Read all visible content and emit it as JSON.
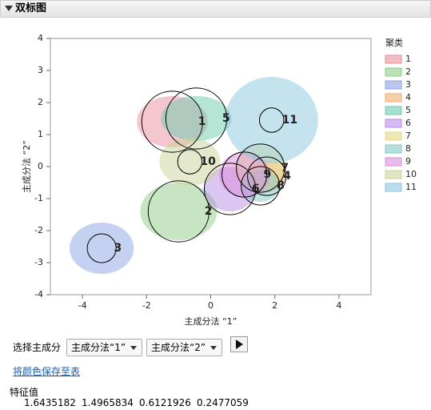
{
  "header": {
    "title": "双标图"
  },
  "chart_data": {
    "type": "cluster-biplot",
    "x_label": "主成分法 “1”",
    "y_label": "主成分法 “2”",
    "xlim": [
      -5,
      5
    ],
    "ylim": [
      -4,
      4
    ],
    "xticks": [
      -4,
      -2,
      0,
      2,
      4
    ],
    "yticks": [
      -4,
      -3,
      -2,
      -1,
      0,
      1,
      2,
      3,
      4
    ],
    "legend_title": "聚类",
    "legend_position": "right",
    "clusters": [
      {
        "name": "1",
        "color": "#e8909c",
        "x": -1.2,
        "y": 1.4,
        "r": 0.95,
        "ellipse": [
          1.1,
          0.8
        ]
      },
      {
        "name": "2",
        "color": "#90cc88",
        "x": -1.0,
        "y": -1.4,
        "r": 0.95,
        "ellipse": [
          1.2,
          0.9
        ]
      },
      {
        "name": "3",
        "color": "#8ca4e4",
        "x": -3.4,
        "y": -2.55,
        "r": 0.45,
        "ellipse": [
          1.0,
          0.8
        ]
      },
      {
        "name": "4",
        "color": "#f0b070",
        "x": 1.75,
        "y": -0.3,
        "r": 0.6,
        "ellipse": [
          0.6,
          0.5
        ]
      },
      {
        "name": "5",
        "color": "#6cccb0",
        "x": -0.45,
        "y": 1.5,
        "r": 0.95,
        "ellipse": [
          1.1,
          0.7
        ]
      },
      {
        "name": "6",
        "color": "#b88ce4",
        "x": 0.6,
        "y": -0.7,
        "r": 0.8,
        "ellipse": [
          0.8,
          0.7
        ]
      },
      {
        "name": "7",
        "color": "#e4d884",
        "x": 1.55,
        "y": -0.05,
        "r": 0.75,
        "ellipse": [
          0.8,
          0.7
        ]
      },
      {
        "name": "8",
        "color": "#84c8c8",
        "x": 1.55,
        "y": -0.6,
        "r": 0.6,
        "ellipse": [
          0.6,
          0.5
        ]
      },
      {
        "name": "9",
        "color": "#dc8cdc",
        "x": 1.05,
        "y": -0.25,
        "r": 0.7,
        "ellipse": [
          0.8,
          0.7
        ]
      },
      {
        "name": "10",
        "color": "#ccd498",
        "x": -0.65,
        "y": 0.15,
        "r": 0.38,
        "ellipse": [
          0.95,
          0.75
        ]
      },
      {
        "name": "11",
        "color": "#8cc8e0",
        "x": 1.9,
        "y": 1.45,
        "r": 0.38,
        "ellipse": [
          1.45,
          1.35
        ]
      }
    ]
  },
  "controls": {
    "select_label": "选择主成分",
    "select1": "主成分法“1”",
    "select2": "主成分法“2”",
    "link": "将颜色保存至表",
    "eigen_title": "特征值",
    "eigenvalues": [
      1.6435182,
      1.4965834,
      0.6121926,
      0.2477059
    ]
  }
}
